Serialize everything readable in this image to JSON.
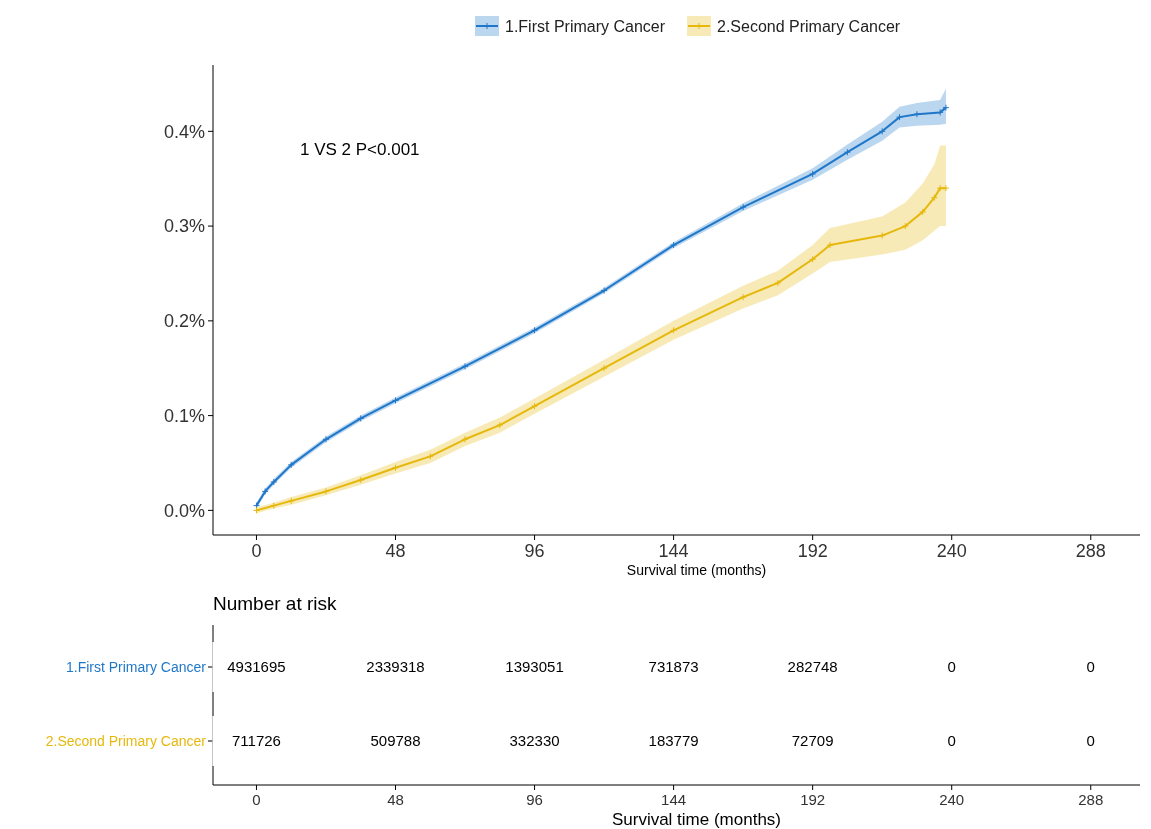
{
  "chart_data": [
    {
      "type": "line",
      "legend": "top",
      "marker": "cross",
      "xlabel": "Survival time (months)",
      "annotations": [
        "1 VS 2 P<0.001"
      ],
      "xlim": [
        -15,
        305
      ],
      "xticks": [
        0,
        48,
        96,
        144,
        192,
        240,
        288
      ],
      "ylim": [
        -0.026,
        0.47
      ],
      "yticks": [
        {
          "value": 0,
          "label": "0.0%"
        },
        {
          "value": 0.1,
          "label": "0.1%"
        },
        {
          "value": 0.2,
          "label": "0.2%"
        },
        {
          "value": 0.3,
          "label": "0.3%"
        },
        {
          "value": 0.4,
          "label": "0.4%"
        }
      ],
      "series": [
        {
          "name": "1.First Primary Cancer",
          "color": "#1f77c9",
          "x": [
            0,
            3,
            6,
            12,
            24,
            36,
            48,
            72,
            96,
            120,
            144,
            168,
            192,
            204,
            216,
            222,
            228,
            236,
            238
          ],
          "values": [
            0.005,
            0.02,
            0.03,
            0.048,
            0.075,
            0.097,
            0.116,
            0.152,
            0.19,
            0.232,
            0.28,
            0.32,
            0.355,
            0.378,
            0.4,
            0.415,
            0.418,
            0.42,
            0.425
          ],
          "lower": [
            0.002,
            0.017,
            0.027,
            0.045,
            0.072,
            0.094,
            0.113,
            0.149,
            0.187,
            0.229,
            0.277,
            0.316,
            0.349,
            0.37,
            0.39,
            0.404,
            0.406,
            0.407,
            0.408
          ],
          "upper": [
            0.008,
            0.023,
            0.033,
            0.051,
            0.078,
            0.1,
            0.119,
            0.155,
            0.193,
            0.235,
            0.283,
            0.324,
            0.361,
            0.386,
            0.41,
            0.426,
            0.43,
            0.433,
            0.445
          ]
        },
        {
          "name": "2.Second Primary Cancer",
          "color": "#e6b80c",
          "x": [
            0,
            6,
            12,
            24,
            36,
            48,
            60,
            72,
            84,
            96,
            120,
            144,
            168,
            180,
            192,
            198,
            216,
            224,
            230,
            234,
            236,
            238
          ],
          "values": [
            0,
            0.005,
            0.01,
            0.02,
            0.032,
            0.045,
            0.057,
            0.075,
            0.09,
            0.11,
            0.15,
            0.19,
            0.225,
            0.24,
            0.265,
            0.28,
            0.29,
            0.3,
            0.315,
            0.33,
            0.34,
            0.34
          ],
          "lower": [
            -0.003,
            0.002,
            0.006,
            0.016,
            0.027,
            0.039,
            0.05,
            0.068,
            0.082,
            0.102,
            0.141,
            0.18,
            0.213,
            0.227,
            0.25,
            0.262,
            0.27,
            0.275,
            0.285,
            0.295,
            0.3,
            0.3
          ],
          "upper": [
            0.003,
            0.008,
            0.014,
            0.024,
            0.037,
            0.051,
            0.064,
            0.082,
            0.098,
            0.118,
            0.159,
            0.2,
            0.237,
            0.253,
            0.28,
            0.298,
            0.31,
            0.325,
            0.345,
            0.365,
            0.385,
            0.385
          ]
        }
      ]
    },
    {
      "type": "heatmap",
      "title": "Number at risk",
      "xlabel": "Survival time (months)",
      "categories": [
        "0",
        "48",
        "96",
        "144",
        "192",
        "240",
        "288"
      ],
      "y_categories": [
        "1.First Primary Cancer",
        "2.Second Primary Cancer"
      ],
      "data_labels": true,
      "cells": [
        [
          4931695,
          2339318,
          1393051,
          731873,
          282748,
          0,
          0
        ],
        [
          711726,
          509788,
          332330,
          183779,
          72709,
          0,
          0
        ]
      ]
    }
  ]
}
